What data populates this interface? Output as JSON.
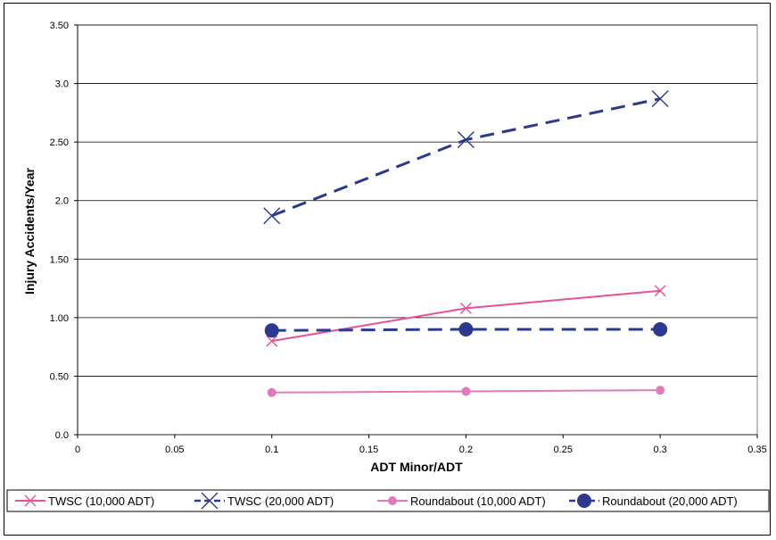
{
  "chart_data": {
    "type": "line",
    "xlabel": "ADT Minor/ADT",
    "ylabel": "Injury Accidents/Year",
    "xlim": [
      0,
      0.35
    ],
    "ylim": [
      0,
      3.5
    ],
    "x_ticks": [
      "0",
      "0.05",
      "0.1",
      "0.15",
      "0.2",
      "0.25",
      "0.3",
      "0.35"
    ],
    "y_ticks": [
      "0.0",
      "0.50",
      "1.00",
      "1.50",
      "2.0",
      "2.50",
      "3.0",
      "3.50"
    ],
    "grid": "horizontal",
    "legend_position": "bottom",
    "series": [
      {
        "name": "TWSC (10,000 ADT)",
        "x": [
          0.1,
          0.2,
          0.3
        ],
        "y": [
          0.8,
          1.08,
          1.23
        ],
        "color": "#e8509a",
        "marker": "x",
        "dash": "solid"
      },
      {
        "name": "TWSC (20,000 ADT)",
        "x": [
          0.1,
          0.2,
          0.3
        ],
        "y": [
          1.87,
          2.52,
          2.87
        ],
        "color": "#2b3990",
        "marker": "x-large",
        "dash": "dashed"
      },
      {
        "name": "Roundabout (10,000 ADT)",
        "x": [
          0.1,
          0.2,
          0.3
        ],
        "y": [
          0.36,
          0.37,
          0.38
        ],
        "color": "#e07bbb",
        "marker": "circle",
        "dash": "solid"
      },
      {
        "name": "Roundabout (20,000 ADT)",
        "x": [
          0.1,
          0.2,
          0.3
        ],
        "y": [
          0.89,
          0.9,
          0.9
        ],
        "color": "#2b3990",
        "marker": "circle-large",
        "dash": "dashed"
      }
    ]
  }
}
